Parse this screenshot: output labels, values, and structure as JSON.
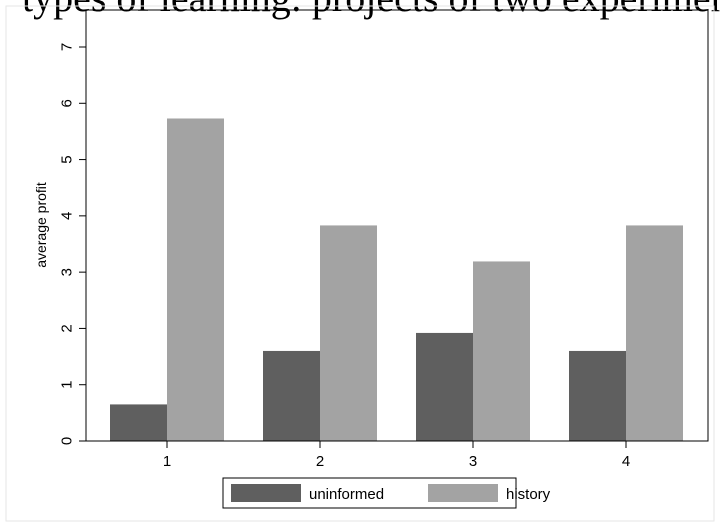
{
  "cropped_caption": "types of learning: projects of two experiments",
  "chart_data": {
    "type": "bar",
    "categories": [
      "1",
      "2",
      "3",
      "4"
    ],
    "series": [
      {
        "name": "uninformed",
        "values": [
          0.65,
          1.6,
          1.92,
          1.6
        ]
      },
      {
        "name": "history",
        "values": [
          5.73,
          3.83,
          3.19,
          3.83
        ]
      }
    ],
    "ylabel": "average profit",
    "ylim": [
      0,
      7
    ],
    "yticks": [
      "0",
      "1",
      "2",
      "3",
      "4",
      "5",
      "6",
      "7"
    ],
    "grid": false,
    "legend_position": "bottom-center"
  },
  "colors": {
    "uninformed": "#5f5f5f",
    "history": "#a3a3a3"
  }
}
